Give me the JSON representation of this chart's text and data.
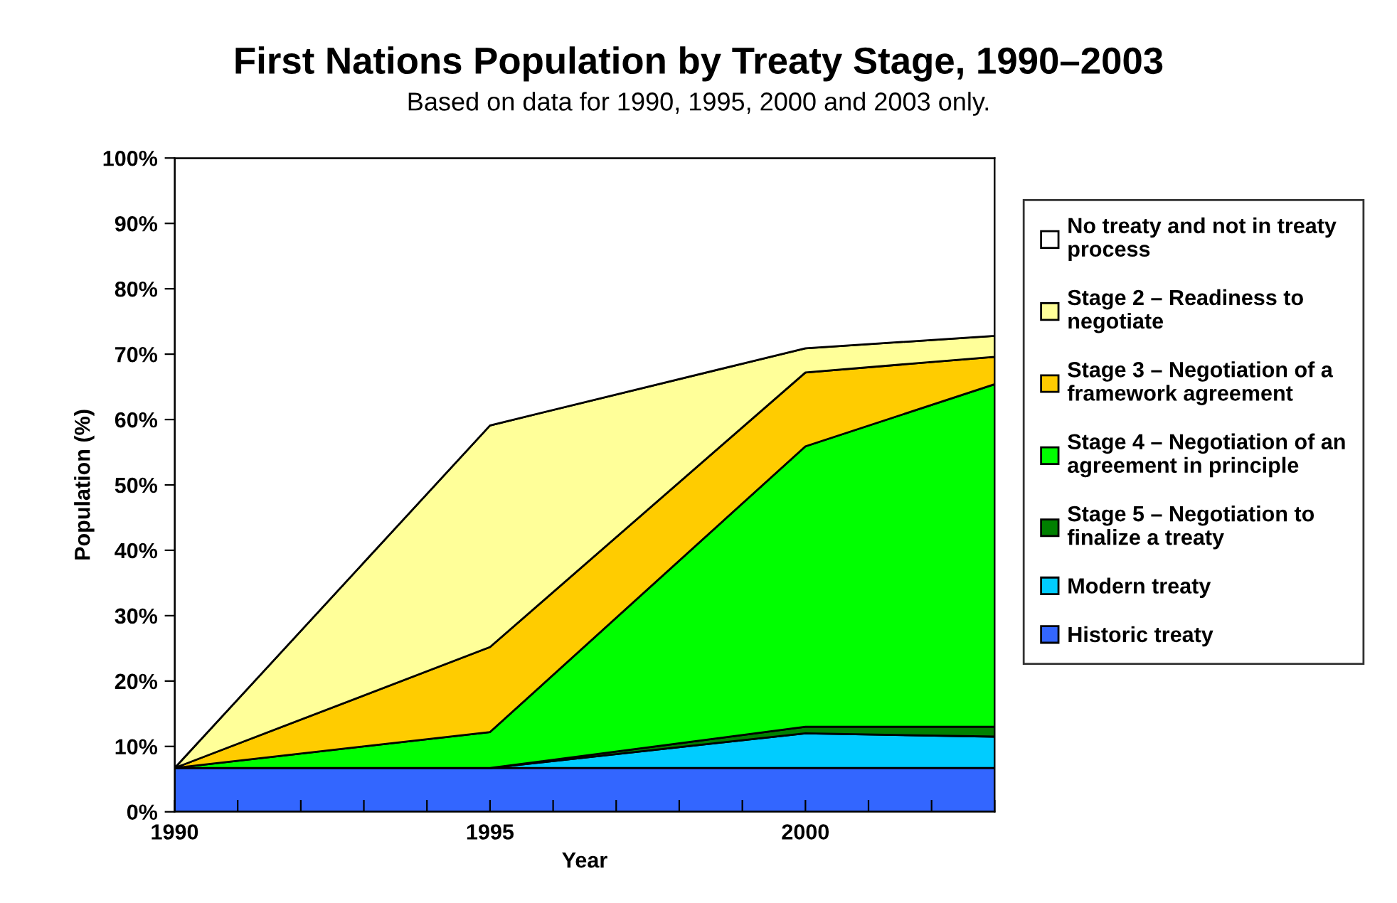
{
  "chart_data": {
    "type": "area",
    "title": "First Nations Population by Treaty Stage, 1990–2003",
    "subtitle": "Based on data for 1990, 1995, 2000 and 2003 only.",
    "xlabel": "Year",
    "ylabel": "Population (%)",
    "x": [
      "1990",
      "1995",
      "2000",
      "2003"
    ],
    "stacked": true,
    "series": [
      {
        "name": "Historic treaty",
        "color": "#3366ff",
        "values": [
          6.7,
          6.7,
          6.7,
          6.7
        ]
      },
      {
        "name": "Modern treaty",
        "color": "#00ccff",
        "values": [
          0,
          0,
          5.3,
          4.8
        ]
      },
      {
        "name": "Stage 5 – Negotiation to finalize a treaty",
        "color": "#008000",
        "values": [
          0,
          0,
          1.0,
          1.5
        ]
      },
      {
        "name": "Stage 4 – Negotiation of an agreement in principle",
        "color": "#00ff00",
        "values": [
          0,
          5.5,
          42.9,
          52.4
        ]
      },
      {
        "name": "Stage 3 – Negotiation of a framework agreement",
        "color": "#ffcc00",
        "values": [
          0,
          13.0,
          11.3,
          4.2
        ]
      },
      {
        "name": "Stage 2 – Readiness to negotiate",
        "color": "#ffff99",
        "values": [
          0,
          33.9,
          3.7,
          3.2
        ]
      },
      {
        "name": "No treaty and not in treaty process",
        "color": "#ffffff",
        "values": [
          93.3,
          40.9,
          29.1,
          27.2
        ]
      }
    ],
    "xlim": [
      "1990",
      "2003"
    ],
    "xticks": [
      {
        "value": "1990",
        "label": "1990"
      },
      {
        "value": "1991",
        "label": null
      },
      {
        "value": "1992",
        "label": null
      },
      {
        "value": "1993",
        "label": null
      },
      {
        "value": "1994",
        "label": null
      },
      {
        "value": "1995",
        "label": "1995"
      },
      {
        "value": "1996",
        "label": null
      },
      {
        "value": "1997",
        "label": null
      },
      {
        "value": "1998",
        "label": null
      },
      {
        "value": "1999",
        "label": null
      },
      {
        "value": "2000",
        "label": "2000"
      },
      {
        "value": "2001",
        "label": null
      },
      {
        "value": "2002",
        "label": null
      },
      {
        "value": "2003",
        "label": null
      }
    ],
    "ylim": [
      0,
      100
    ],
    "yticks": [
      {
        "value": 0,
        "label": "0%"
      },
      {
        "value": 10,
        "label": "10%"
      },
      {
        "value": 20,
        "label": "20%"
      },
      {
        "value": 30,
        "label": "30%"
      },
      {
        "value": 40,
        "label": "40%"
      },
      {
        "value": 50,
        "label": "50%"
      },
      {
        "value": 60,
        "label": "60%"
      },
      {
        "value": 70,
        "label": "70%"
      },
      {
        "value": 80,
        "label": "80%"
      },
      {
        "value": 90,
        "label": "90%"
      },
      {
        "value": 100,
        "label": "100%"
      }
    ],
    "grid": false,
    "legend": "right"
  }
}
